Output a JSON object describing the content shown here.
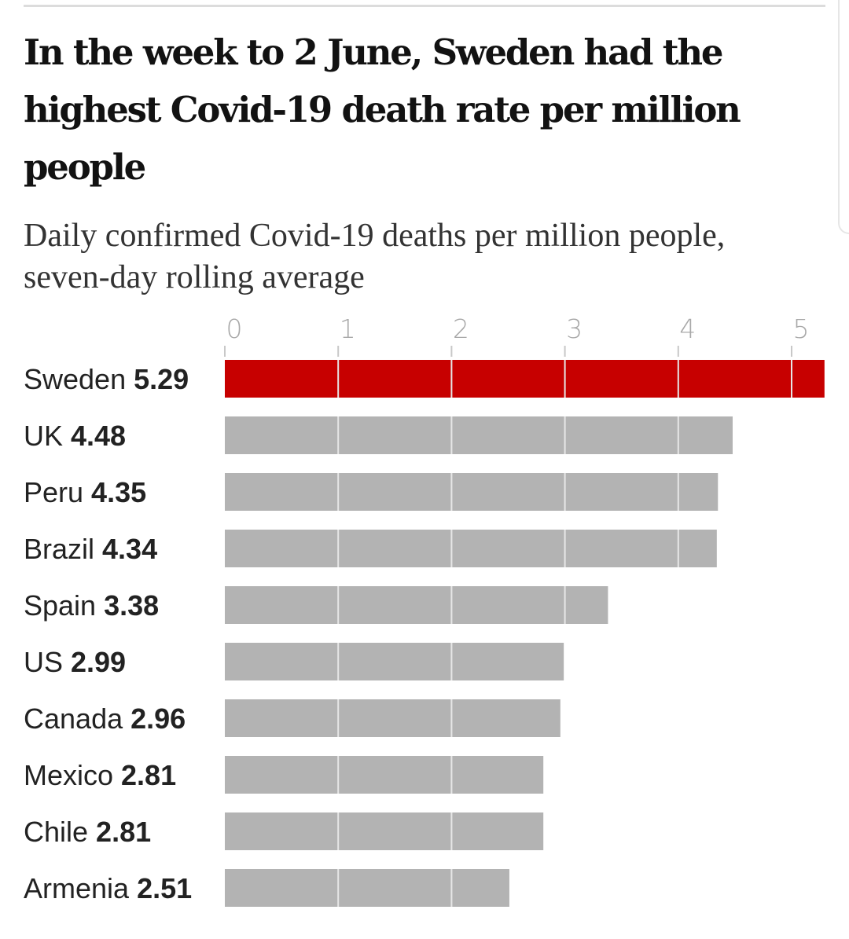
{
  "chart_data": {
    "type": "bar",
    "orientation": "horizontal",
    "title": "In the week to 2 June, Sweden had the highest Covid-19 death rate per million people",
    "subtitle": "Daily confirmed Covid-19 deaths per million people, seven-day rolling average",
    "categories": [
      "Sweden",
      "UK",
      "Peru",
      "Brazil",
      "Spain",
      "US",
      "Canada",
      "Mexico",
      "Chile",
      "Armenia"
    ],
    "values": [
      5.29,
      4.48,
      4.35,
      4.34,
      3.38,
      2.99,
      2.96,
      2.81,
      2.81,
      2.51
    ],
    "value_labels": [
      "5.29",
      "4.48",
      "4.35",
      "4.34",
      "3.38",
      "2.99",
      "2.96",
      "2.81",
      "2.81",
      "2.51"
    ],
    "highlight": "Sweden",
    "xticks": [
      "0",
      "1",
      "2",
      "3",
      "4",
      "5"
    ],
    "xlim": [
      0,
      5.3
    ],
    "grid": true,
    "colors": {
      "highlight": "#c70000",
      "default": "#b3b3b3",
      "gridline": "#e6e6e6"
    }
  }
}
